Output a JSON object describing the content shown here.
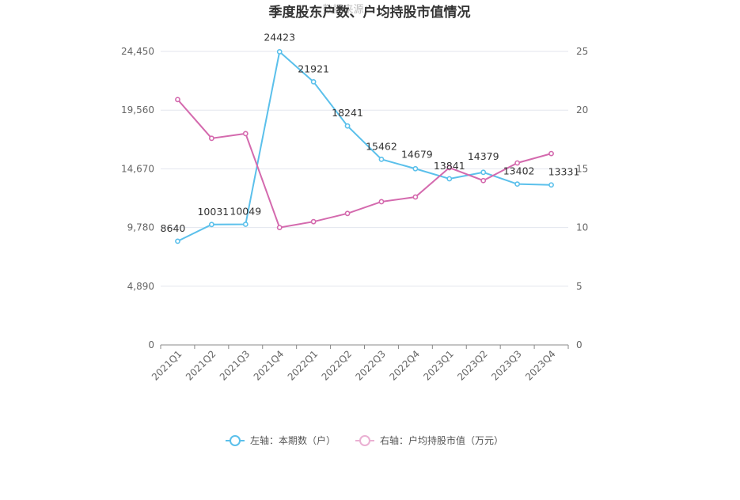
{
  "chart_data": {
    "type": "line",
    "title": "季度股东户数、户均持股市值情况",
    "watermark": "数据来源：",
    "categories": [
      "2021Q1",
      "2021Q2",
      "2021Q3",
      "2021Q4",
      "2022Q1",
      "2022Q2",
      "2022Q3",
      "2022Q4",
      "2023Q1",
      "2023Q2",
      "2023Q3",
      "2023Q4"
    ],
    "left_axis": {
      "ticks": [
        0,
        4890,
        9780,
        14670,
        19560,
        24450
      ],
      "tick_labels": [
        "0",
        "4,890",
        "9,780",
        "14,670",
        "19,560",
        "24,450"
      ],
      "ylim": [
        0,
        24450
      ]
    },
    "right_axis": {
      "ticks": [
        0,
        5,
        10,
        15,
        20,
        25
      ],
      "tick_labels": [
        "0",
        "5",
        "10",
        "15",
        "20",
        "25"
      ],
      "ylim": [
        0,
        25
      ]
    },
    "series": [
      {
        "name": "左轴：本期数（户）",
        "axis": "left",
        "color": "#5bc0eb",
        "values": [
          8640,
          10031,
          10049,
          24423,
          21921,
          18241,
          15462,
          14679,
          13841,
          14379,
          13402,
          13331
        ],
        "labels": [
          "8640",
          "10031",
          "10049",
          "24423",
          "21921",
          "18241",
          "15462",
          "14679",
          "13841",
          "14379",
          "13402",
          "13331"
        ]
      },
      {
        "name": "右轴：户均持股市值（万元）",
        "axis": "right",
        "color": "#d46aae",
        "values": [
          20.9,
          17.6,
          18.0,
          10.0,
          10.5,
          11.2,
          12.2,
          12.6,
          15.1,
          14.0,
          15.5,
          16.3
        ]
      }
    ],
    "legend_position": "bottom",
    "grid": true
  }
}
